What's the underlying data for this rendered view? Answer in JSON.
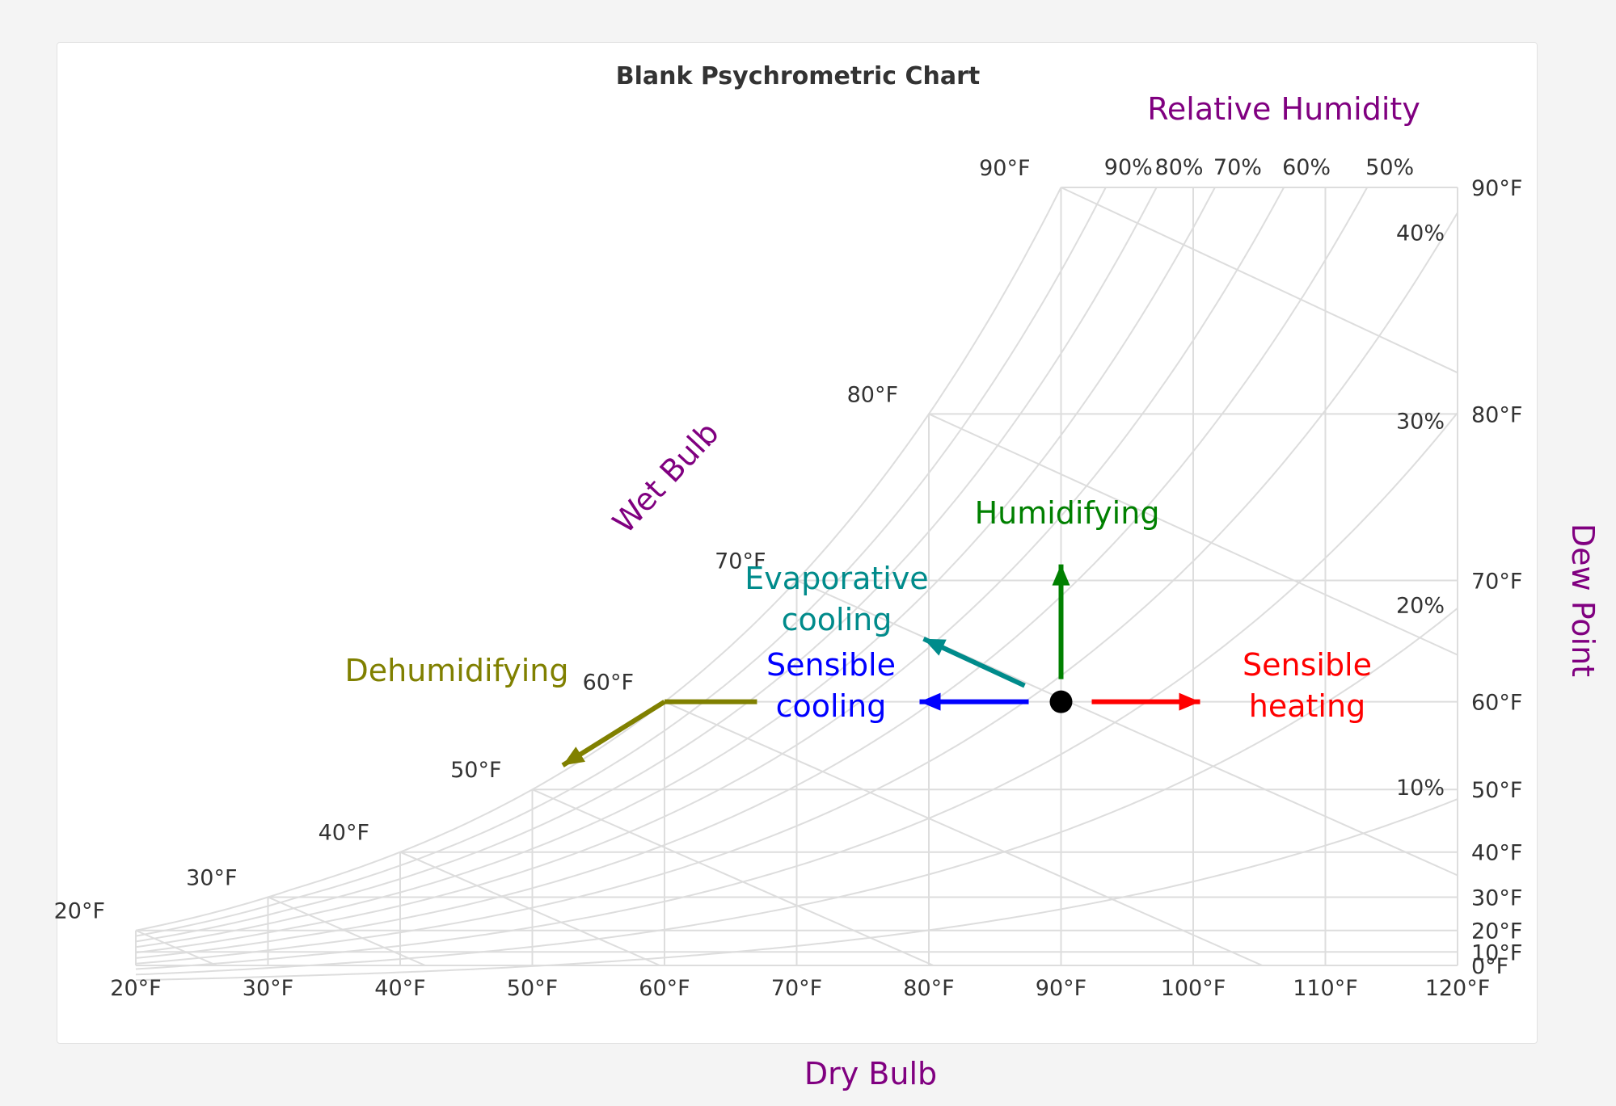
{
  "chart_data": {
    "type": "psychrometric",
    "title": "Blank Psychrometric Chart",
    "xlabel": "Dry Bulb",
    "ylabel": "Dew Point",
    "rh_axis_label": "Relative Humidity",
    "wb_axis_label": "Wet Bulb",
    "xlim": [
      20,
      120
    ],
    "x_ticks": [
      20,
      30,
      40,
      50,
      60,
      70,
      80,
      90,
      100,
      110,
      120
    ],
    "x_tick_labels": [
      "20°F",
      "30°F",
      "40°F",
      "50°F",
      "60°F",
      "70°F",
      "80°F",
      "90°F",
      "100°F",
      "110°F",
      "120°F"
    ],
    "dew_point_ticks": [
      0,
      10,
      20,
      30,
      40,
      50,
      60,
      70,
      80,
      90
    ],
    "dew_point_labels": [
      "0°F",
      "10°F",
      "20°F",
      "30°F",
      "40°F",
      "50°F",
      "60°F",
      "70°F",
      "80°F",
      "90°F"
    ],
    "rh_curves": [
      10,
      20,
      30,
      40,
      50,
      60,
      70,
      80,
      90,
      100
    ],
    "rh_top_labels": [
      "90%",
      "80%",
      "70%",
      "60%",
      "50%"
    ],
    "rh_side_labels": [
      "40%",
      "30%",
      "20%",
      "10%"
    ],
    "wet_bulb_lines": [
      20,
      30,
      40,
      50,
      60,
      70,
      80,
      90
    ],
    "wet_bulb_labels": [
      "20°F",
      "30°F",
      "40°F",
      "50°F",
      "60°F",
      "70°F",
      "80°F",
      "90°F"
    ],
    "state_point": {
      "dry_bulb": 90,
      "dew_point": 60
    },
    "processes": [
      {
        "name": "Humidifying",
        "color": "#008000",
        "lines": [
          "Humidifying"
        ]
      },
      {
        "name": "Sensible heating",
        "color": "#ff0000",
        "lines": [
          "Sensible",
          "heating"
        ]
      },
      {
        "name": "Sensible cooling",
        "color": "#0000ff",
        "lines": [
          "Sensible",
          "cooling"
        ]
      },
      {
        "name": "Evaporative cooling",
        "color": "#008b8b",
        "lines": [
          "Evaporative",
          "cooling"
        ]
      },
      {
        "name": "Dehumidifying",
        "color": "#808000",
        "lines": [
          "Dehumidifying"
        ]
      }
    ],
    "axis_label_color": "#800080",
    "grid_color": "#dddddd"
  }
}
